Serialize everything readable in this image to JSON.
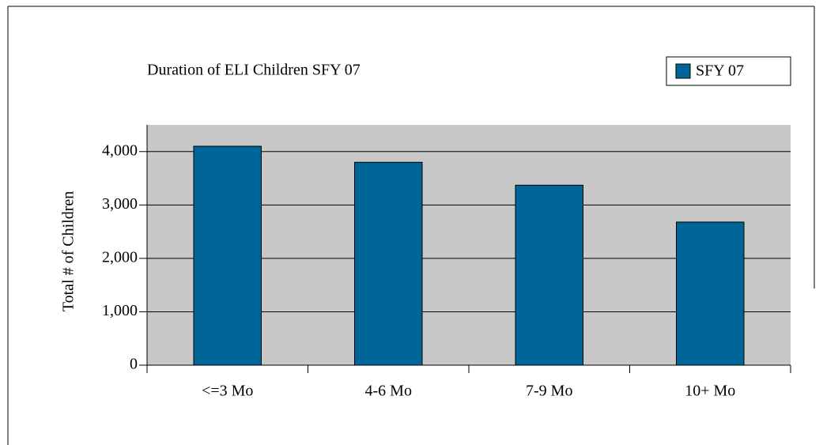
{
  "chart_data": {
    "type": "bar",
    "title": "Duration of ELI Children SFY 07",
    "y_label": "Total # of Children",
    "categories": [
      "<=3 Mo",
      "4-6 Mo",
      "7-9 Mo",
      "10+ Mo"
    ],
    "series": [
      {
        "name": "SFY 07",
        "color": "#006699",
        "values": [
          4100,
          3800,
          3370,
          2680
        ]
      }
    ],
    "ylim": [
      0,
      4500
    ],
    "yticks": [
      0,
      {
        "value": 1000,
        "label": "1,000"
      },
      {
        "value": 2000,
        "label": "2,000"
      },
      {
        "value": 3000,
        "label": "3,000"
      },
      {
        "value": 4000,
        "label": "4,000"
      }
    ],
    "grid": true,
    "legend": "top-right"
  }
}
